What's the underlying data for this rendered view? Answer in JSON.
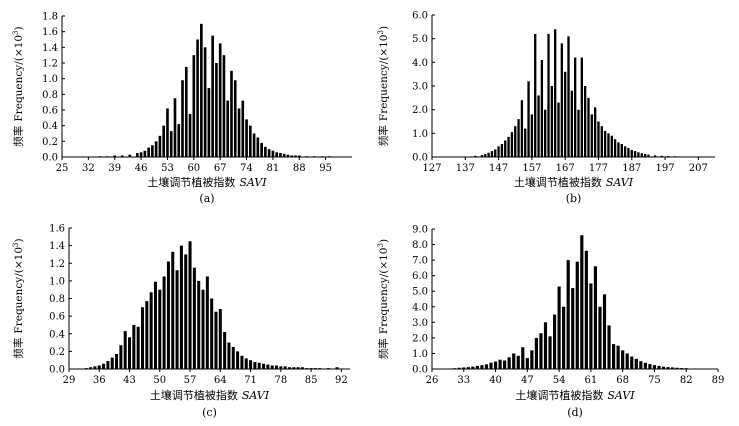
{
  "chart_data": [
    {
      "type": "bar",
      "panel_label": "(a)",
      "xlabel_cn": "土壤调节植被指数",
      "xlabel_var": "SAVI",
      "ylabel_cn": "频率",
      "ylabel_en": "Frequency/(×10",
      "ylabel_exp": "3",
      "ylabel_close": ")",
      "xlim": [
        25,
        102
      ],
      "xticks": [
        "25",
        "32",
        "39",
        "46",
        "53",
        "60",
        "67",
        "74",
        "81",
        "88",
        "95"
      ],
      "ylim": [
        0,
        1.8
      ],
      "yticks": [
        "0.0",
        "0.2",
        "0.4",
        "0.6",
        "0.8",
        "1.0",
        "1.2",
        "1.4",
        "1.6",
        "1.8"
      ],
      "x": [
        35,
        37,
        39,
        41,
        43,
        45,
        46,
        47,
        48,
        49,
        50,
        51,
        52,
        53,
        54,
        55,
        56,
        57,
        58,
        59,
        60,
        61,
        62,
        63,
        64,
        65,
        66,
        67,
        68,
        69,
        70,
        71,
        72,
        73,
        74,
        75,
        76,
        77,
        78,
        79,
        80,
        81,
        82,
        83,
        84,
        85,
        86,
        87,
        88,
        90,
        92,
        94,
        96
      ],
      "values": [
        0.01,
        0.01,
        0.02,
        0.02,
        0.03,
        0.05,
        0.06,
        0.08,
        0.12,
        0.15,
        0.2,
        0.27,
        0.4,
        0.62,
        0.33,
        0.75,
        0.42,
        0.98,
        1.15,
        0.55,
        1.3,
        1.5,
        1.7,
        1.4,
        0.88,
        1.55,
        1.2,
        1.45,
        1.3,
        0.72,
        1.1,
        0.98,
        0.62,
        0.72,
        0.48,
        0.4,
        0.3,
        0.25,
        0.18,
        0.13,
        0.1,
        0.08,
        0.06,
        0.05,
        0.04,
        0.03,
        0.02,
        0.02,
        0.02,
        0.01,
        0.01,
        0.01,
        0.01
      ]
    },
    {
      "type": "bar",
      "panel_label": "(b)",
      "xlabel_cn": "土壤调节植被指数",
      "xlabel_var": "SAVI",
      "ylabel_cn": "频率",
      "ylabel_en": "Frequency/(×10",
      "ylabel_exp": "3",
      "ylabel_close": ")",
      "xlim": [
        127,
        212
      ],
      "xticks": [
        "127",
        "137",
        "147",
        "157",
        "167",
        "177",
        "187",
        "197",
        "207"
      ],
      "ylim": [
        0,
        6.0
      ],
      "yticks": [
        "0.0",
        "1.0",
        "2.0",
        "3.0",
        "4.0",
        "5.0",
        "6.0"
      ],
      "x": [
        140,
        142,
        143,
        144,
        145,
        146,
        147,
        148,
        149,
        150,
        151,
        152,
        153,
        154,
        155,
        156,
        157,
        158,
        159,
        160,
        161,
        162,
        163,
        164,
        165,
        166,
        167,
        168,
        169,
        170,
        171,
        172,
        173,
        174,
        175,
        176,
        177,
        178,
        179,
        180,
        181,
        182,
        183,
        184,
        185,
        186,
        187,
        188,
        189,
        190,
        191,
        192,
        194,
        196,
        198,
        200,
        202
      ],
      "values": [
        0.05,
        0.08,
        0.12,
        0.18,
        0.25,
        0.32,
        0.45,
        0.55,
        0.7,
        0.85,
        1.05,
        1.3,
        1.6,
        2.4,
        1.2,
        3.2,
        1.8,
        5.2,
        2.6,
        4.1,
        2.0,
        5.2,
        3.0,
        5.4,
        2.3,
        4.8,
        3.6,
        5.1,
        2.8,
        4.2,
        2.0,
        4.2,
        3.0,
        2.5,
        1.8,
        2.1,
        1.5,
        1.3,
        1.1,
        1.0,
        0.9,
        0.75,
        0.62,
        0.55,
        0.45,
        0.38,
        0.3,
        0.25,
        0.2,
        0.16,
        0.13,
        0.1,
        0.07,
        0.05,
        0.04,
        0.03,
        0.02
      ]
    },
    {
      "type": "bar",
      "panel_label": "(c)",
      "xlabel_cn": "土壤调节植被指数",
      "xlabel_var": "SAVI",
      "ylabel_cn": "频率",
      "ylabel_en": "Frequency/(×10",
      "ylabel_exp": "3",
      "ylabel_close": ")",
      "xlim": [
        29,
        94
      ],
      "xticks": [
        "29",
        "36",
        "43",
        "50",
        "57",
        "64",
        "71",
        "78",
        "85",
        "92"
      ],
      "ylim": [
        0,
        1.6
      ],
      "yticks": [
        "0.0",
        "0.2",
        "0.4",
        "0.6",
        "0.8",
        "1.0",
        "1.2",
        "1.4",
        "1.6"
      ],
      "x": [
        33,
        34,
        35,
        36,
        37,
        38,
        39,
        40,
        41,
        42,
        43,
        44,
        45,
        46,
        47,
        48,
        49,
        50,
        51,
        52,
        53,
        54,
        55,
        56,
        57,
        58,
        59,
        60,
        61,
        62,
        63,
        64,
        65,
        66,
        67,
        68,
        69,
        70,
        71,
        72,
        73,
        74,
        75,
        76,
        77,
        78,
        79,
        80,
        81,
        82,
        83,
        84,
        85,
        86,
        87,
        89,
        91
      ],
      "values": [
        0.01,
        0.02,
        0.03,
        0.04,
        0.06,
        0.09,
        0.13,
        0.17,
        0.27,
        0.43,
        0.36,
        0.5,
        0.48,
        0.7,
        0.77,
        0.87,
        0.99,
        0.9,
        1.05,
        1.22,
        1.33,
        1.12,
        1.4,
        1.3,
        1.45,
        1.15,
        1.0,
        0.9,
        1.05,
        0.8,
        0.65,
        0.68,
        0.42,
        0.3,
        0.25,
        0.2,
        0.15,
        0.12,
        0.1,
        0.08,
        0.07,
        0.06,
        0.05,
        0.04,
        0.04,
        0.03,
        0.03,
        0.02,
        0.02,
        0.02,
        0.02,
        0.01,
        0.01,
        0.01,
        0.01,
        0.01,
        0.02
      ]
    },
    {
      "type": "bar",
      "panel_label": "(d)",
      "xlabel_cn": "土壤调节植被指数",
      "xlabel_var": "SAVI",
      "ylabel_cn": "频率",
      "ylabel_en": "Frequency/(×10",
      "ylabel_exp": "3",
      "ylabel_close": ")",
      "xlim": [
        26,
        89
      ],
      "xticks": [
        "26",
        "33",
        "40",
        "47",
        "54",
        "61",
        "68",
        "75",
        "82",
        "89"
      ],
      "ylim": [
        0,
        9.0
      ],
      "yticks": [
        "0.0",
        "1.0",
        "2.0",
        "3.0",
        "4.0",
        "5.0",
        "6.0",
        "7.0",
        "8.0",
        "9.0"
      ],
      "x": [
        30,
        31,
        32,
        33,
        34,
        35,
        36,
        37,
        38,
        39,
        40,
        41,
        42,
        43,
        44,
        45,
        46,
        47,
        48,
        49,
        50,
        51,
        52,
        53,
        54,
        55,
        56,
        57,
        58,
        59,
        60,
        61,
        62,
        63,
        64,
        65,
        66,
        67,
        68,
        69,
        70,
        71,
        72,
        73,
        74,
        75,
        76,
        77,
        78,
        79,
        80,
        81,
        82,
        84,
        86
      ],
      "values": [
        0.03,
        0.05,
        0.08,
        0.1,
        0.12,
        0.15,
        0.2,
        0.25,
        0.3,
        0.4,
        0.48,
        0.6,
        0.55,
        0.75,
        1.0,
        0.85,
        1.4,
        0.7,
        1.2,
        2.0,
        2.3,
        3.0,
        2.1,
        3.5,
        5.3,
        4.0,
        7.0,
        5.2,
        6.9,
        8.6,
        7.6,
        5.5,
        6.6,
        4.0,
        4.8,
        2.8,
        1.6,
        1.5,
        1.2,
        1.0,
        0.8,
        0.65,
        0.5,
        0.4,
        0.32,
        0.25,
        0.2,
        0.15,
        0.12,
        0.1,
        0.08,
        0.06,
        0.05,
        0.03,
        0.02
      ]
    }
  ]
}
